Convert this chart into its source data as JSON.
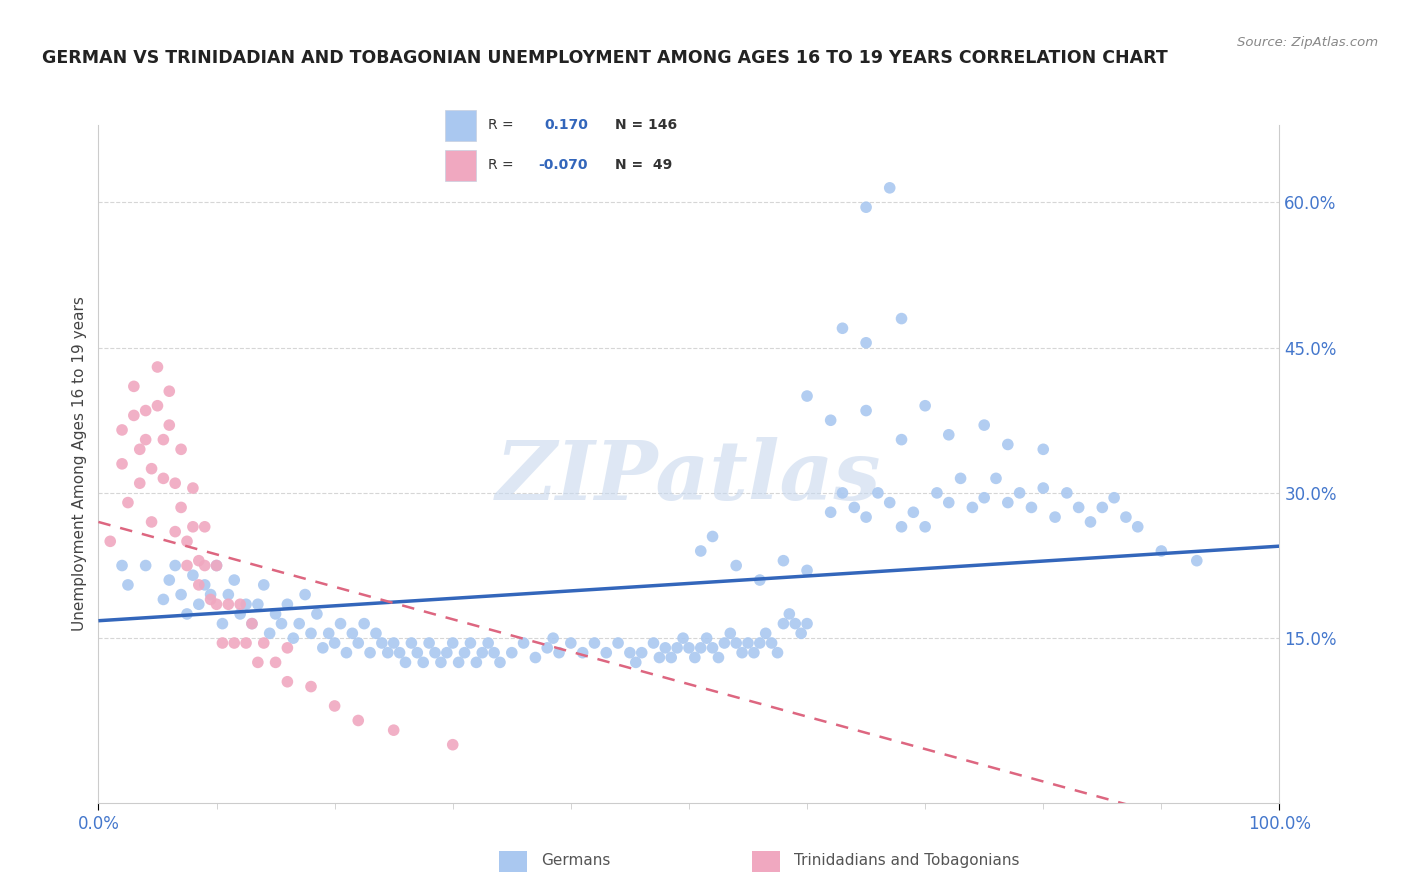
{
  "title": "GERMAN VS TRINIDADIAN AND TOBAGONIAN UNEMPLOYMENT AMONG AGES 16 TO 19 YEARS CORRELATION CHART",
  "source": "Source: ZipAtlas.com",
  "ylabel": "Unemployment Among Ages 16 to 19 years",
  "yticks_labels": [
    "15.0%",
    "30.0%",
    "45.0%",
    "60.0%"
  ],
  "ytick_vals": [
    0.15,
    0.3,
    0.45,
    0.6
  ],
  "xlim": [
    0.0,
    1.0
  ],
  "ylim": [
    -0.02,
    0.68
  ],
  "blue_color": "#aac8f0",
  "pink_color": "#f0a8c0",
  "blue_line_color": "#3366bb",
  "pink_line_color": "#dd6680",
  "blue_tick_color": "#4477cc",
  "watermark_color": "#c8d8ee",
  "legend_bg": "#f0f4fc",
  "legend_border": "#c8d0e0",
  "legend_text_color": "#222222",
  "legend_val_color": "#3366bb",
  "title_color": "#222222",
  "source_color": "#888888",
  "grid_color": "#cccccc",
  "bg_color": "#ffffff",
  "spine_color": "#cccccc",
  "blue_scatter": [
    [
      0.02,
      0.225
    ],
    [
      0.025,
      0.205
    ],
    [
      0.04,
      0.225
    ],
    [
      0.055,
      0.19
    ],
    [
      0.06,
      0.21
    ],
    [
      0.065,
      0.225
    ],
    [
      0.07,
      0.195
    ],
    [
      0.075,
      0.175
    ],
    [
      0.08,
      0.215
    ],
    [
      0.085,
      0.185
    ],
    [
      0.09,
      0.205
    ],
    [
      0.095,
      0.195
    ],
    [
      0.1,
      0.225
    ],
    [
      0.105,
      0.165
    ],
    [
      0.11,
      0.195
    ],
    [
      0.115,
      0.21
    ],
    [
      0.12,
      0.175
    ],
    [
      0.125,
      0.185
    ],
    [
      0.13,
      0.165
    ],
    [
      0.135,
      0.185
    ],
    [
      0.14,
      0.205
    ],
    [
      0.145,
      0.155
    ],
    [
      0.15,
      0.175
    ],
    [
      0.155,
      0.165
    ],
    [
      0.16,
      0.185
    ],
    [
      0.165,
      0.15
    ],
    [
      0.17,
      0.165
    ],
    [
      0.175,
      0.195
    ],
    [
      0.18,
      0.155
    ],
    [
      0.185,
      0.175
    ],
    [
      0.19,
      0.14
    ],
    [
      0.195,
      0.155
    ],
    [
      0.2,
      0.145
    ],
    [
      0.205,
      0.165
    ],
    [
      0.21,
      0.135
    ],
    [
      0.215,
      0.155
    ],
    [
      0.22,
      0.145
    ],
    [
      0.225,
      0.165
    ],
    [
      0.23,
      0.135
    ],
    [
      0.235,
      0.155
    ],
    [
      0.24,
      0.145
    ],
    [
      0.245,
      0.135
    ],
    [
      0.25,
      0.145
    ],
    [
      0.255,
      0.135
    ],
    [
      0.26,
      0.125
    ],
    [
      0.265,
      0.145
    ],
    [
      0.27,
      0.135
    ],
    [
      0.275,
      0.125
    ],
    [
      0.28,
      0.145
    ],
    [
      0.285,
      0.135
    ],
    [
      0.29,
      0.125
    ],
    [
      0.295,
      0.135
    ],
    [
      0.3,
      0.145
    ],
    [
      0.305,
      0.125
    ],
    [
      0.31,
      0.135
    ],
    [
      0.315,
      0.145
    ],
    [
      0.32,
      0.125
    ],
    [
      0.325,
      0.135
    ],
    [
      0.33,
      0.145
    ],
    [
      0.335,
      0.135
    ],
    [
      0.34,
      0.125
    ],
    [
      0.35,
      0.135
    ],
    [
      0.36,
      0.145
    ],
    [
      0.37,
      0.13
    ],
    [
      0.38,
      0.14
    ],
    [
      0.385,
      0.15
    ],
    [
      0.39,
      0.135
    ],
    [
      0.4,
      0.145
    ],
    [
      0.41,
      0.135
    ],
    [
      0.42,
      0.145
    ],
    [
      0.43,
      0.135
    ],
    [
      0.44,
      0.145
    ],
    [
      0.45,
      0.135
    ],
    [
      0.455,
      0.125
    ],
    [
      0.46,
      0.135
    ],
    [
      0.47,
      0.145
    ],
    [
      0.475,
      0.13
    ],
    [
      0.48,
      0.14
    ],
    [
      0.485,
      0.13
    ],
    [
      0.49,
      0.14
    ],
    [
      0.495,
      0.15
    ],
    [
      0.5,
      0.14
    ],
    [
      0.505,
      0.13
    ],
    [
      0.51,
      0.14
    ],
    [
      0.515,
      0.15
    ],
    [
      0.52,
      0.14
    ],
    [
      0.525,
      0.13
    ],
    [
      0.53,
      0.145
    ],
    [
      0.535,
      0.155
    ],
    [
      0.54,
      0.145
    ],
    [
      0.545,
      0.135
    ],
    [
      0.55,
      0.145
    ],
    [
      0.555,
      0.135
    ],
    [
      0.56,
      0.145
    ],
    [
      0.565,
      0.155
    ],
    [
      0.57,
      0.145
    ],
    [
      0.575,
      0.135
    ],
    [
      0.58,
      0.165
    ],
    [
      0.585,
      0.175
    ],
    [
      0.59,
      0.165
    ],
    [
      0.595,
      0.155
    ],
    [
      0.6,
      0.165
    ],
    [
      0.51,
      0.24
    ],
    [
      0.52,
      0.255
    ],
    [
      0.54,
      0.225
    ],
    [
      0.56,
      0.21
    ],
    [
      0.58,
      0.23
    ],
    [
      0.6,
      0.22
    ],
    [
      0.62,
      0.28
    ],
    [
      0.63,
      0.3
    ],
    [
      0.64,
      0.285
    ],
    [
      0.65,
      0.275
    ],
    [
      0.66,
      0.3
    ],
    [
      0.67,
      0.29
    ],
    [
      0.68,
      0.265
    ],
    [
      0.69,
      0.28
    ],
    [
      0.7,
      0.265
    ],
    [
      0.71,
      0.3
    ],
    [
      0.72,
      0.29
    ],
    [
      0.73,
      0.315
    ],
    [
      0.74,
      0.285
    ],
    [
      0.75,
      0.295
    ],
    [
      0.76,
      0.315
    ],
    [
      0.77,
      0.29
    ],
    [
      0.78,
      0.3
    ],
    [
      0.79,
      0.285
    ],
    [
      0.8,
      0.305
    ],
    [
      0.81,
      0.275
    ],
    [
      0.82,
      0.3
    ],
    [
      0.83,
      0.285
    ],
    [
      0.84,
      0.27
    ],
    [
      0.85,
      0.285
    ],
    [
      0.86,
      0.295
    ],
    [
      0.87,
      0.275
    ],
    [
      0.88,
      0.265
    ],
    [
      0.6,
      0.4
    ],
    [
      0.62,
      0.375
    ],
    [
      0.65,
      0.385
    ],
    [
      0.68,
      0.355
    ],
    [
      0.7,
      0.39
    ],
    [
      0.72,
      0.36
    ],
    [
      0.75,
      0.37
    ],
    [
      0.77,
      0.35
    ],
    [
      0.8,
      0.345
    ],
    [
      0.63,
      0.47
    ],
    [
      0.65,
      0.455
    ],
    [
      0.68,
      0.48
    ],
    [
      0.65,
      0.595
    ],
    [
      0.67,
      0.615
    ],
    [
      0.9,
      0.24
    ],
    [
      0.93,
      0.23
    ]
  ],
  "pink_scatter": [
    [
      0.01,
      0.25
    ],
    [
      0.02,
      0.365
    ],
    [
      0.02,
      0.33
    ],
    [
      0.025,
      0.29
    ],
    [
      0.03,
      0.41
    ],
    [
      0.03,
      0.38
    ],
    [
      0.035,
      0.345
    ],
    [
      0.035,
      0.31
    ],
    [
      0.04,
      0.385
    ],
    [
      0.04,
      0.355
    ],
    [
      0.045,
      0.325
    ],
    [
      0.045,
      0.27
    ],
    [
      0.05,
      0.43
    ],
    [
      0.05,
      0.39
    ],
    [
      0.055,
      0.355
    ],
    [
      0.055,
      0.315
    ],
    [
      0.06,
      0.405
    ],
    [
      0.06,
      0.37
    ],
    [
      0.065,
      0.31
    ],
    [
      0.065,
      0.26
    ],
    [
      0.07,
      0.345
    ],
    [
      0.07,
      0.285
    ],
    [
      0.075,
      0.25
    ],
    [
      0.075,
      0.225
    ],
    [
      0.08,
      0.305
    ],
    [
      0.08,
      0.265
    ],
    [
      0.085,
      0.23
    ],
    [
      0.085,
      0.205
    ],
    [
      0.09,
      0.265
    ],
    [
      0.09,
      0.225
    ],
    [
      0.095,
      0.19
    ],
    [
      0.1,
      0.225
    ],
    [
      0.1,
      0.185
    ],
    [
      0.105,
      0.145
    ],
    [
      0.11,
      0.185
    ],
    [
      0.115,
      0.145
    ],
    [
      0.12,
      0.185
    ],
    [
      0.125,
      0.145
    ],
    [
      0.13,
      0.165
    ],
    [
      0.135,
      0.125
    ],
    [
      0.14,
      0.145
    ],
    [
      0.15,
      0.125
    ],
    [
      0.16,
      0.105
    ],
    [
      0.18,
      0.1
    ],
    [
      0.2,
      0.08
    ],
    [
      0.22,
      0.065
    ],
    [
      0.25,
      0.055
    ],
    [
      0.3,
      0.04
    ],
    [
      0.16,
      0.14
    ]
  ],
  "blue_trend": [
    0.0,
    0.168,
    1.0,
    0.245
  ],
  "pink_trend": [
    0.0,
    0.27,
    1.0,
    -0.065
  ],
  "watermark": "ZIPatlas"
}
